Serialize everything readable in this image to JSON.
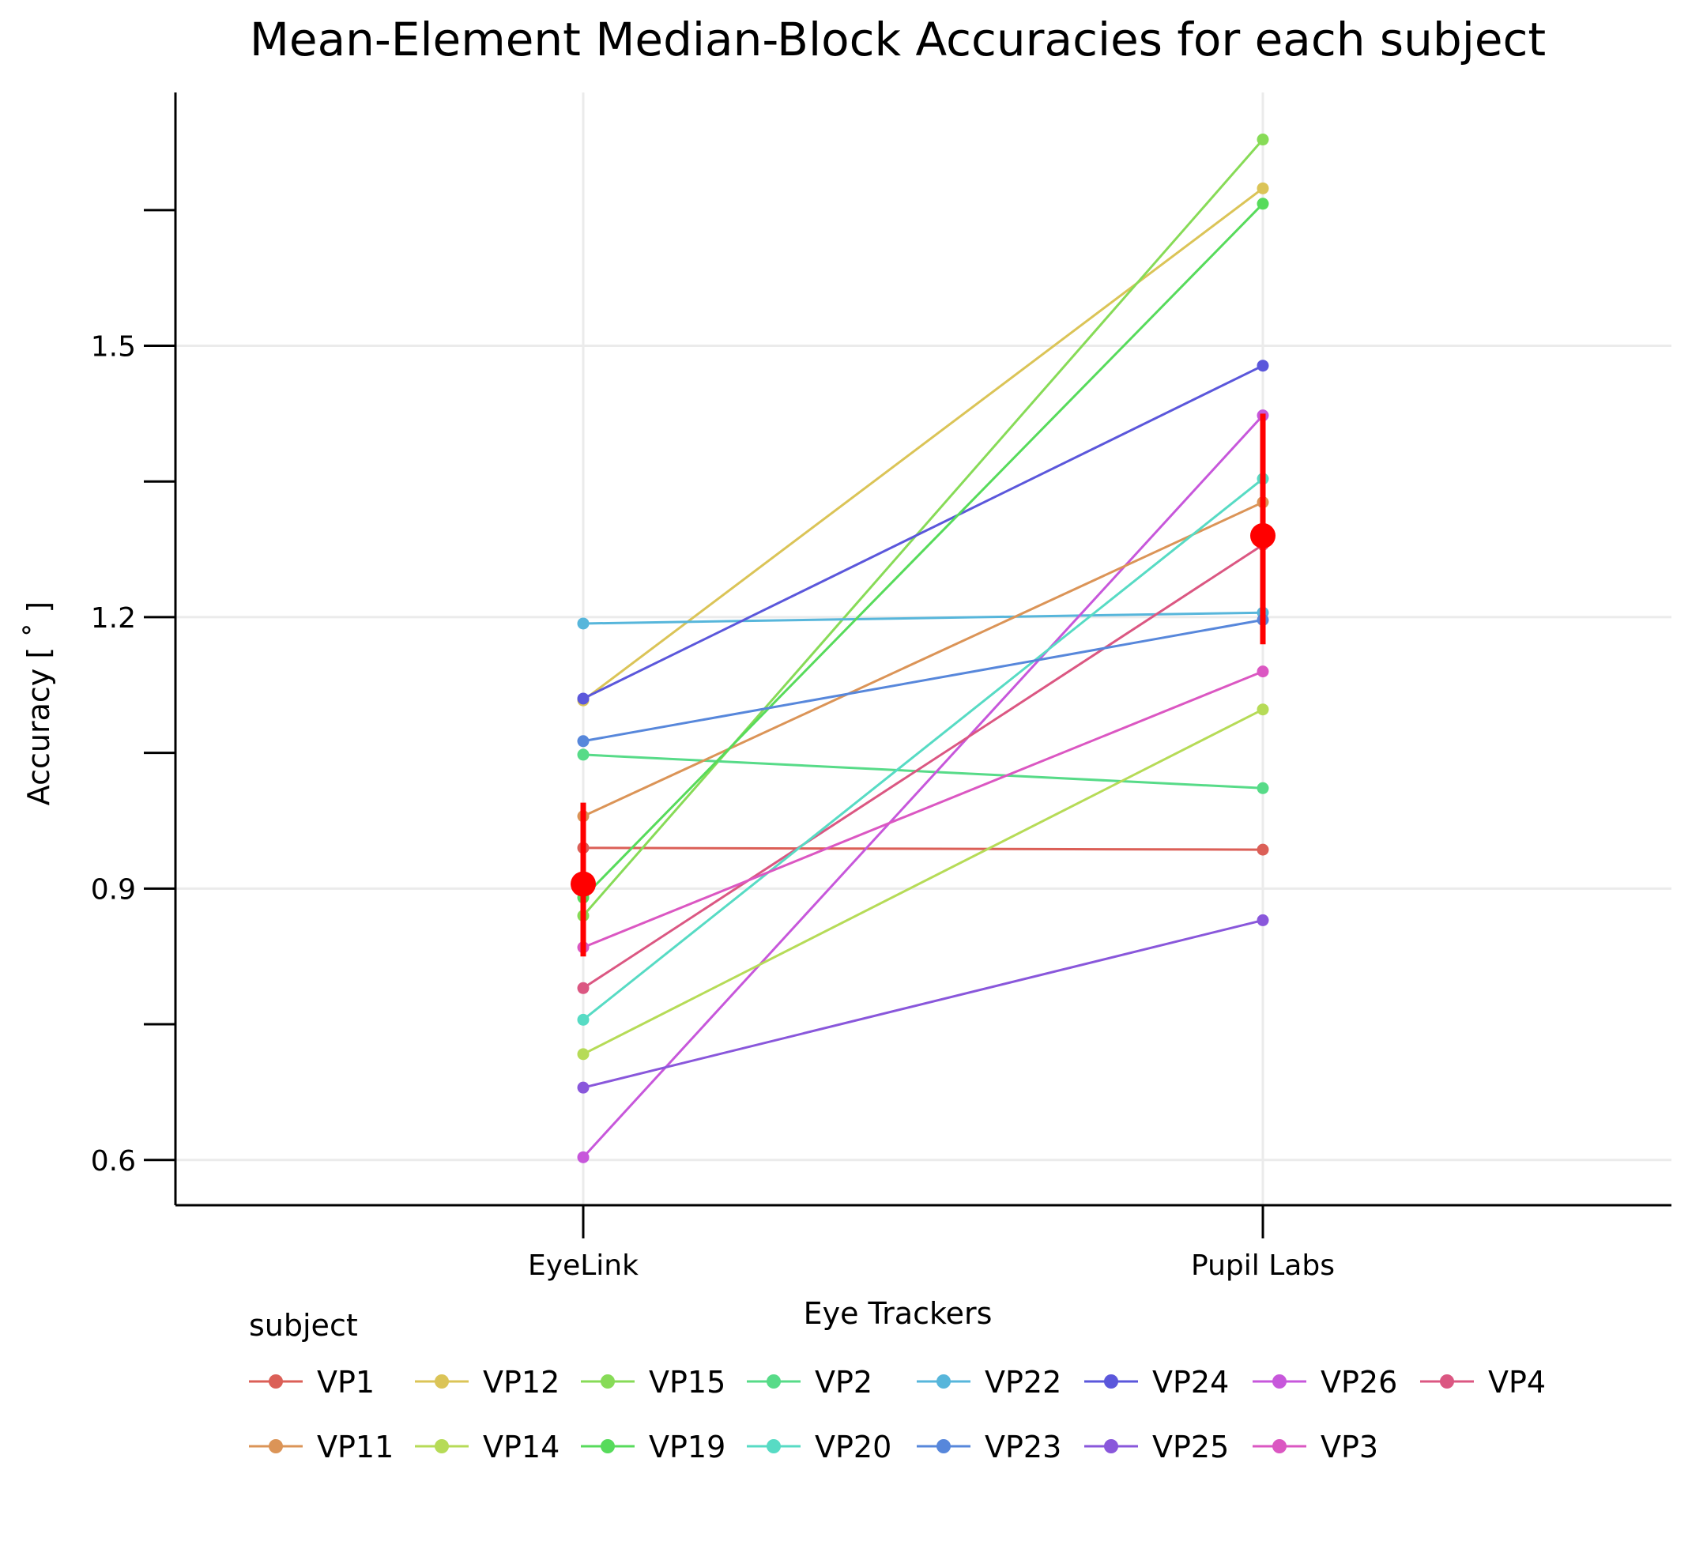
{
  "chart_data": {
    "type": "line",
    "title": "Mean-Element  Median-Block  Accuracies for each subject",
    "xlabel": "Eye Trackers",
    "ylabel": "Accuracy [ ˚ ]",
    "categories": [
      "EyeLink",
      "Pupil Labs"
    ],
    "ylim": [
      0.55,
      1.78
    ],
    "yticks": [
      0.6,
      0.9,
      1.2,
      1.5
    ],
    "yticks_labels": [
      "0.6",
      "0.9",
      "1.2",
      "1.5"
    ],
    "yminor_ticks": [
      0.75,
      1.05,
      1.35,
      1.65
    ],
    "grid": true,
    "legend_title": "subject",
    "legend_position": "bottom",
    "series": [
      {
        "name": "VP1",
        "color": "#db5f57",
        "values": [
          0.945,
          0.943
        ]
      },
      {
        "name": "VP12",
        "color": "#dbc457",
        "values": [
          1.108,
          1.674
        ]
      },
      {
        "name": "VP15",
        "color": "#87db57",
        "values": [
          0.87,
          1.728
        ]
      },
      {
        "name": "VP2",
        "color": "#57db88",
        "values": [
          1.048,
          1.011
        ]
      },
      {
        "name": "VP22",
        "color": "#57b6db",
        "values": [
          1.193,
          1.205
        ]
      },
      {
        "name": "VP24",
        "color": "#5b57db",
        "values": [
          1.11,
          1.478
        ]
      },
      {
        "name": "VP26",
        "color": "#c757db",
        "values": [
          0.603,
          1.423
        ]
      },
      {
        "name": "VP4",
        "color": "#db5782",
        "values": [
          0.79,
          1.28
        ]
      },
      {
        "name": "VP11",
        "color": "#db9457",
        "values": [
          0.98,
          1.327
        ]
      },
      {
        "name": "VP14",
        "color": "#b6db57",
        "values": [
          0.717,
          1.098
        ]
      },
      {
        "name": "VP19",
        "color": "#57db5b",
        "values": [
          0.89,
          1.657
        ]
      },
      {
        "name": "VP20",
        "color": "#57dbc4",
        "values": [
          0.755,
          1.353
        ]
      },
      {
        "name": "VP23",
        "color": "#5787db",
        "values": [
          1.063,
          1.197
        ]
      },
      {
        "name": "VP25",
        "color": "#8957db",
        "values": [
          0.68,
          0.865
        ]
      },
      {
        "name": "VP3",
        "color": "#db57c2",
        "values": [
          0.835,
          1.14
        ]
      }
    ],
    "mean": {
      "color": "#ff0000",
      "values": [
        0.905,
        1.29
      ],
      "ci_low": [
        0.825,
        1.17
      ],
      "ci_high": [
        0.995,
        1.425
      ]
    }
  }
}
